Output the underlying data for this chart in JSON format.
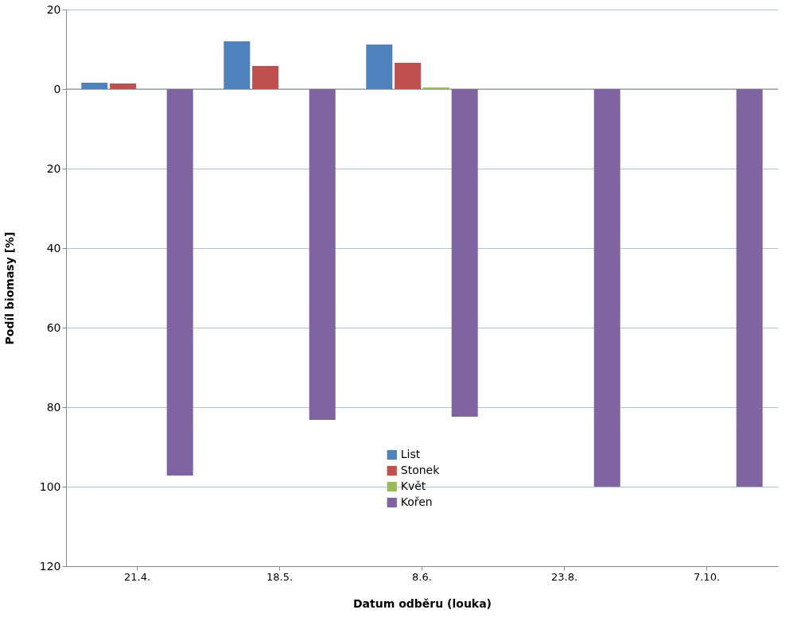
{
  "chart_data": {
    "type": "bar",
    "xlabel": "Datum odběru (louka)",
    "ylabel": "Podíl biomasy [%]",
    "categories": [
      "21.4.",
      "18.5.",
      "8.6.",
      "23.8.",
      "7.10."
    ],
    "series": [
      {
        "name": "List",
        "color": "#4f81bd",
        "values": [
          1.6,
          12,
          11.2,
          null,
          null
        ]
      },
      {
        "name": "Stonek",
        "color": "#c0504d",
        "values": [
          1.4,
          5.8,
          6.6,
          null,
          null
        ]
      },
      {
        "name": "Květ",
        "color": "#9bbb59",
        "values": [
          null,
          null,
          0.4,
          null,
          null
        ]
      },
      {
        "name": "Kořen",
        "color": "#8064a2",
        "values": [
          -97.2,
          -83.2,
          -82.4,
          -100,
          -100
        ]
      }
    ],
    "ylim": [
      -120,
      20
    ],
    "yticks": [
      20,
      0,
      {
        "value": -20,
        "label": "20"
      },
      {
        "value": -40,
        "label": "40"
      },
      {
        "value": -60,
        "label": "60"
      },
      {
        "value": -80,
        "label": "80"
      },
      {
        "value": -100,
        "label": "100"
      },
      {
        "value": -120,
        "label": "120"
      }
    ],
    "grid": "y",
    "legend": "bottom"
  }
}
